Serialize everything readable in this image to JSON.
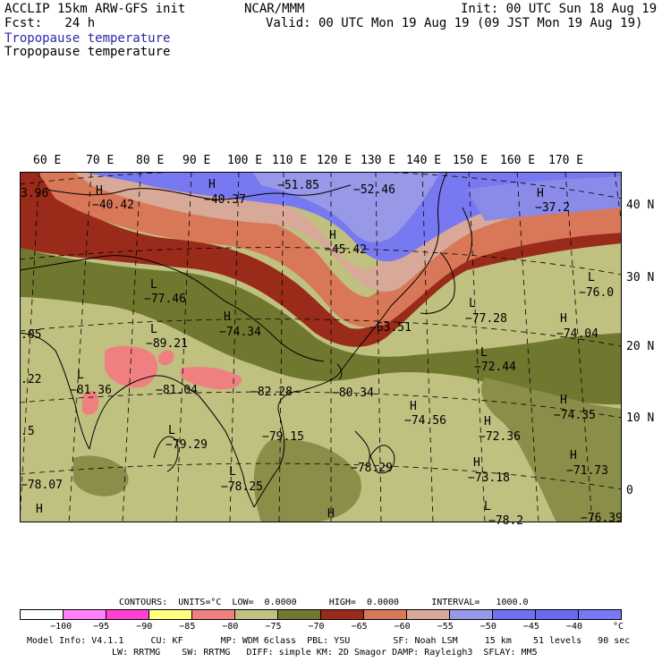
{
  "header": {
    "line1_left": "ACCLIP 15km ARW-GFS init",
    "line2_left": "Fcst:   24 h",
    "center": "NCAR/MMM",
    "init": "Init: 00 UTC Sun 18 Aug 19",
    "valid": "Valid: 00 UTC Mon 19 Aug 19 (09 JST Mon 19 Aug 19)",
    "field1": "Tropopause temperature",
    "field2": "Tropopause temperature"
  },
  "lon_labels": [
    "60 E",
    "70 E",
    "80 E",
    "90 E",
    "100 E",
    "110 E",
    "120 E",
    "130 E",
    "140 E",
    "150 E",
    "160 E",
    "170 E"
  ],
  "lat_labels": [
    "40 N",
    "30 N",
    "20 N",
    "10 N",
    "0"
  ],
  "annotations": [
    {
      "k": "a1",
      "t": "3.96"
    },
    {
      "k": "a2",
      "t": "H"
    },
    {
      "k": "a3",
      "t": "−40.42"
    },
    {
      "k": "a4",
      "t": "H"
    },
    {
      "k": "a5",
      "t": "−40.37"
    },
    {
      "k": "a6",
      "t": "−51.85"
    },
    {
      "k": "a7",
      "t": "−52.46"
    },
    {
      "k": "a8",
      "t": "H"
    },
    {
      "k": "a9",
      "t": "−37.2"
    },
    {
      "k": "a10",
      "t": "H"
    },
    {
      "k": "a11",
      "t": "−45.42"
    },
    {
      "k": "a12",
      "t": "L"
    },
    {
      "k": "a13",
      "t": "−77.46"
    },
    {
      "k": "a14",
      "t": "L"
    },
    {
      "k": "a15",
      "t": "−76.0"
    },
    {
      "k": "a16",
      "t": "L"
    },
    {
      "k": "a17",
      "t": "−77.28"
    },
    {
      "k": "a18",
      "t": "H"
    },
    {
      "k": "a19",
      "t": "−74.34"
    },
    {
      "k": "a20",
      "t": "L"
    },
    {
      "k": "a21",
      "t": "−89.21"
    },
    {
      "k": "a22",
      "t": ".05"
    },
    {
      "k": "a23",
      "t": "−63.51"
    },
    {
      "k": "a24",
      "t": "H"
    },
    {
      "k": "a25",
      "t": "−74.04"
    },
    {
      "k": "a26",
      "t": "L"
    },
    {
      "k": "a27",
      "t": "−72.44"
    },
    {
      "k": "a28",
      "t": "L"
    },
    {
      "k": "a29",
      "t": "−81.36"
    },
    {
      "k": "a30",
      "t": "−81.04"
    },
    {
      "k": "a31",
      "t": "−82.28"
    },
    {
      "k": "a32",
      "t": "−80.34"
    },
    {
      "k": "a33",
      "t": "H"
    },
    {
      "k": "a34",
      "t": "−74.56"
    },
    {
      "k": "a35",
      "t": "H"
    },
    {
      "k": "a36",
      "t": "−74.35"
    },
    {
      "k": "a37",
      "t": "H"
    },
    {
      "k": "a38",
      "t": "−72.36"
    },
    {
      "k": "a39",
      "t": ".22"
    },
    {
      "k": "a40",
      "t": ".5"
    },
    {
      "k": "a41",
      "t": "L"
    },
    {
      "k": "a42",
      "t": "−79.29"
    },
    {
      "k": "a43",
      "t": "−79.15"
    },
    {
      "k": "a44",
      "t": "L"
    },
    {
      "k": "a45",
      "t": "−78.25"
    },
    {
      "k": "a46",
      "t": "−78.29"
    },
    {
      "k": "a47",
      "t": "H"
    },
    {
      "k": "a48",
      "t": "−73.18"
    },
    {
      "k": "a49",
      "t": "H"
    },
    {
      "k": "a50",
      "t": "−71.73"
    },
    {
      "k": "a51",
      "t": "−78.07"
    },
    {
      "k": "a52",
      "t": "H"
    },
    {
      "k": "a53",
      "t": "H"
    },
    {
      "k": "a54",
      "t": "L"
    },
    {
      "k": "a55",
      "t": "−78.2"
    },
    {
      "k": "a56",
      "t": "−76.39"
    }
  ],
  "legend": {
    "contours": "CONTOURS:  UNITS=°C  LOW=  0.0000      HIGH=  0.0000      INTERVAL=   1000.0",
    "colors": [
      "#ffffff",
      "#ff80ff",
      "#ff40d0",
      "#ffff80",
      "#f08080",
      "#c0c080",
      "#707830",
      "#9a2a1a",
      "#d87858",
      "#d8a898",
      "#9898e8",
      "#7070f0",
      "#6a6af0",
      "#7878f8"
    ],
    "ticks": [
      "−100",
      "−95",
      "−90",
      "−85",
      "−80",
      "−75",
      "−70",
      "−65",
      "−60",
      "−55",
      "−50",
      "−45",
      "−40",
      "°C"
    ]
  },
  "model_info": {
    "line1": "Model Info: V4.1.1     CU: KF       MP: WDM 6class  PBL: YSU        SF: Noah LSM     15 km    51 levels   90 sec",
    "line2": "LW: RRTMG    SW: RRTMG   DIFF: simple KM: 2D Smagor DAMP: Rayleigh3  SFLAY: MM5"
  }
}
